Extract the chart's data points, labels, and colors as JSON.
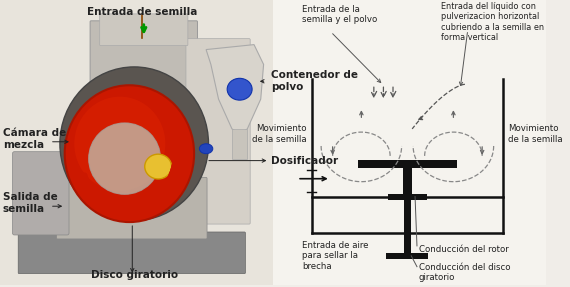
{
  "bg_color": "#f0ede8",
  "left_labels": {
    "entrada_semilla": "Entrada de semilla",
    "camara_mezcla": "Cámara de\nmezcla",
    "salida_semilla": "Salida de\nsemilla",
    "contenedor_polvo": "Contenedor de\npolvo",
    "dosificador": "Dosificador",
    "disco_giratorio": "Disco giratorio"
  },
  "right_labels": {
    "entrada_semilla_polvo": "Entrada de la\nsemilla y el polvo",
    "entrada_liquido": "Entrada del líquido con\npulverizacion horizontal\ncubriendo a la semilla en\nforma vertical",
    "movimiento_izq": "Movimiento\nde la semilla",
    "movimiento_der": "Movimiento\nde la semilla",
    "entrada_aire": "Entrada de aire\npara sellar la\nbrecha",
    "conduccion_rotor": "Conducción del rotor",
    "conduccion_disco": "Conducción del disco\ngiratorio"
  },
  "text_color": "#222222",
  "diagram_color": "#111111",
  "diagram_bg": "#ffffff"
}
